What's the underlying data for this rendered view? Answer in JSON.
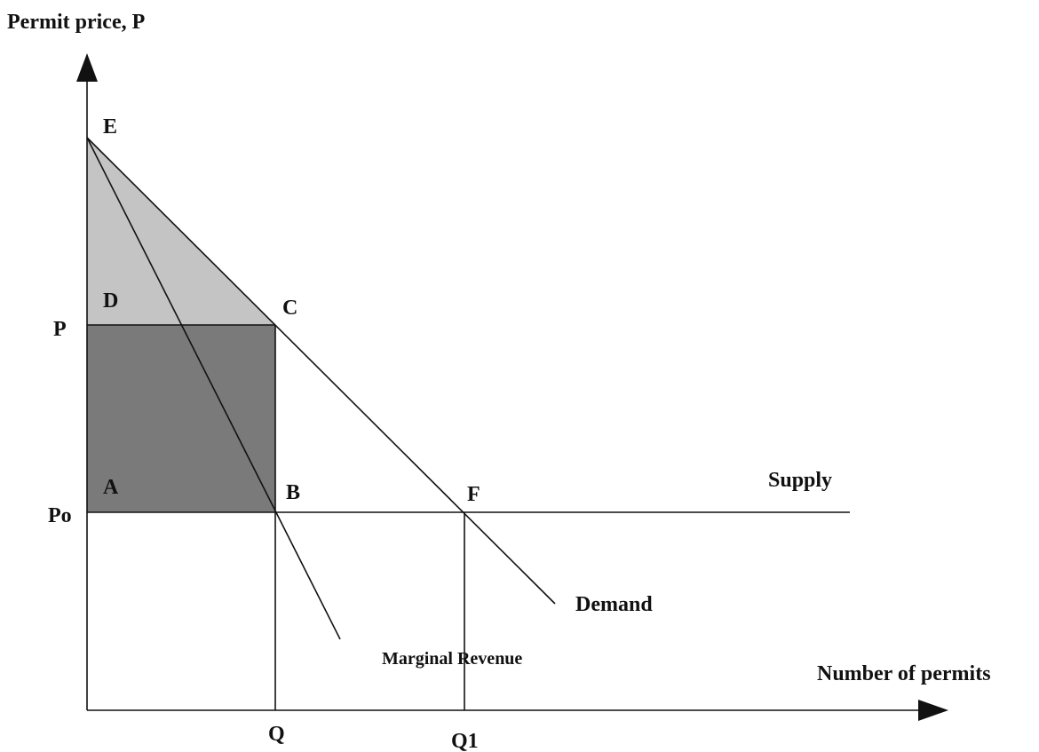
{
  "axes": {
    "y_label": "Permit price, P",
    "x_label": "Number of permits"
  },
  "points": {
    "E": "E",
    "D": "D",
    "C": "C",
    "A": "A",
    "B": "B",
    "F": "F"
  },
  "prices": {
    "p": "P",
    "po": "Po"
  },
  "quantities": {
    "q": "Q",
    "q1": "Q1"
  },
  "curves": {
    "supply": "Supply",
    "demand": "Demand",
    "marginal_revenue": "Marginal Revenue"
  }
}
